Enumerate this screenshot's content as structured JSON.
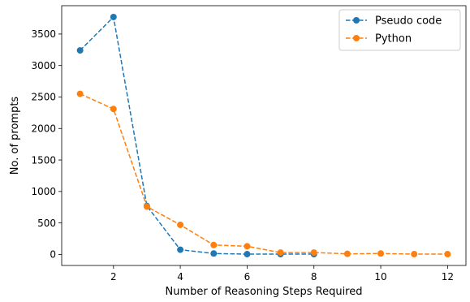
{
  "chart_data": {
    "type": "line",
    "xlabel": "Number of Reasoning Steps Required",
    "ylabel": "No. of prompts",
    "xlim": [
      0.45,
      12.55
    ],
    "ylim": [
      -175,
      3950
    ],
    "xticks": [
      2,
      4,
      6,
      8,
      10,
      12
    ],
    "yticks": [
      0,
      500,
      1000,
      1500,
      2000,
      2500,
      3000,
      3500
    ],
    "grid": false,
    "legend_position": "top-right",
    "series": [
      {
        "name": "Pseudo code",
        "color": "#1f77b4",
        "line_style": "dashed",
        "marker": "circle",
        "x": [
          1,
          2,
          3,
          4,
          5,
          6,
          7,
          8
        ],
        "y": [
          3240,
          3770,
          770,
          75,
          15,
          5,
          5,
          5
        ]
      },
      {
        "name": "Python",
        "color": "#ff7f0e",
        "line_style": "dashed",
        "marker": "circle",
        "x": [
          1,
          2,
          3,
          4,
          5,
          6,
          7,
          8,
          9,
          10,
          11,
          12
        ],
        "y": [
          2550,
          2310,
          760,
          470,
          150,
          130,
          30,
          30,
          10,
          15,
          5,
          5
        ]
      }
    ]
  }
}
